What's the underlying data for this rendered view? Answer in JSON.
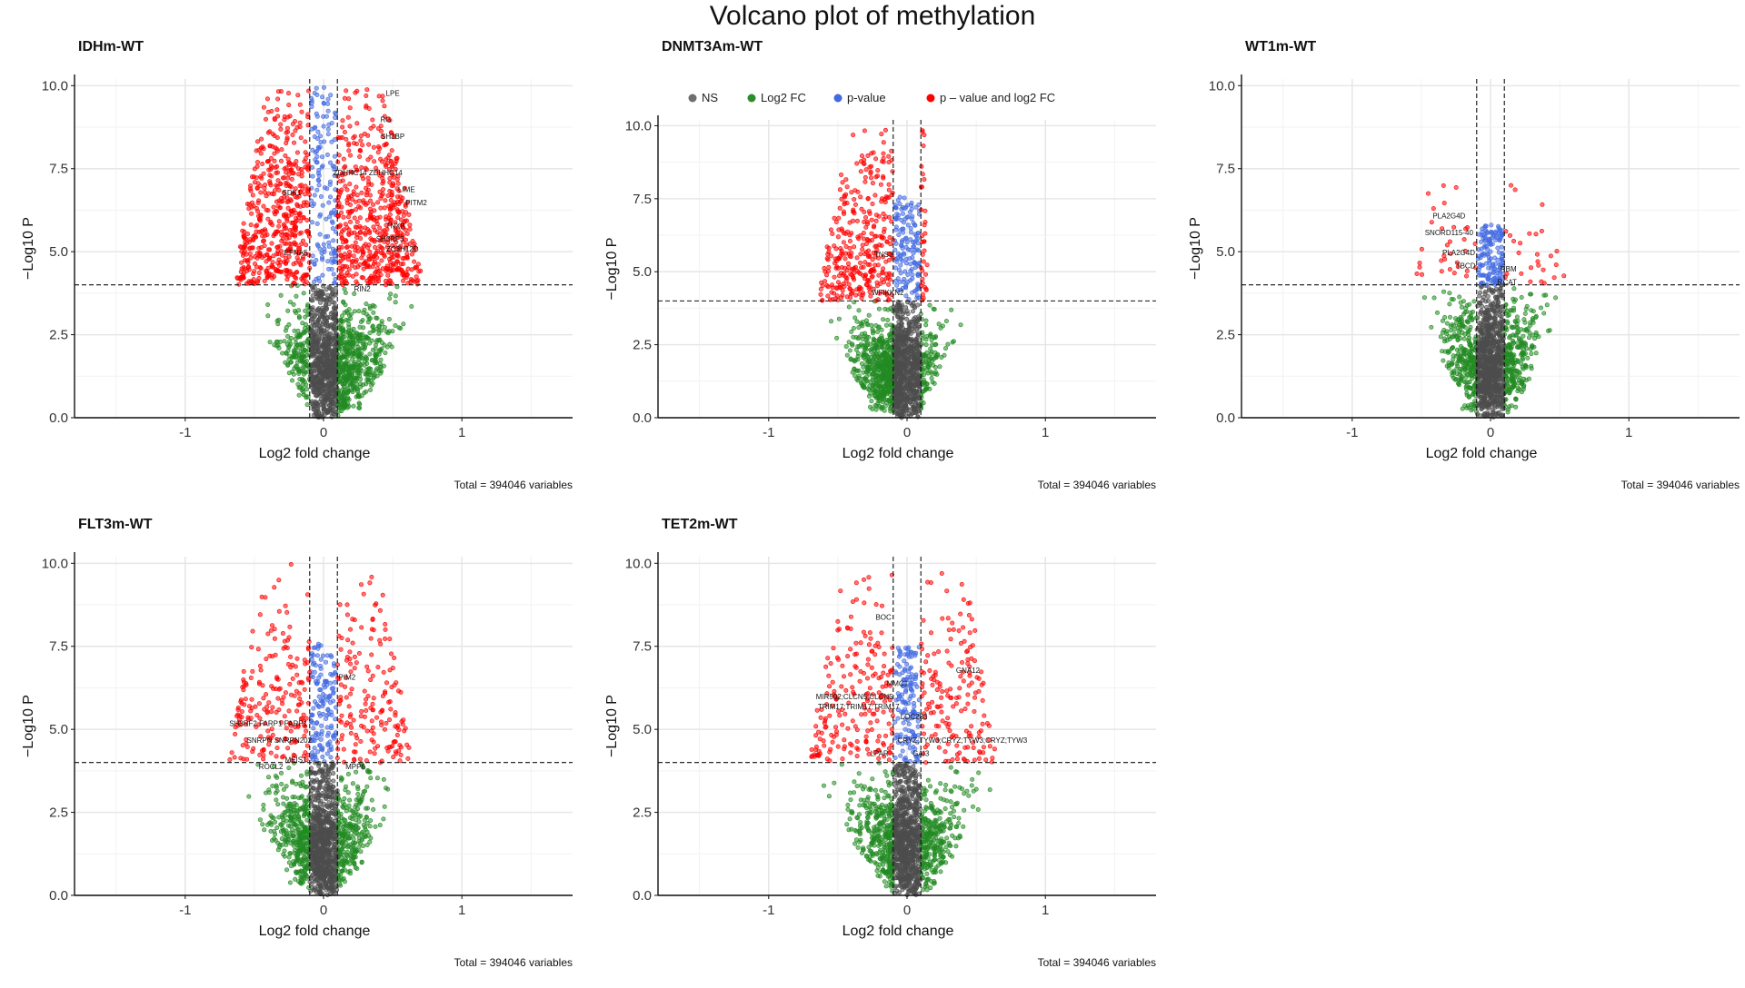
{
  "title": "Volcano plot of methylation",
  "legend": {
    "position": "top",
    "entries": [
      {
        "key": "NS",
        "color": "#6e6e6e"
      },
      {
        "key": "Log2 FC",
        "color": "#2e8b2e"
      },
      {
        "key": "p-value",
        "color": "#4169e1"
      },
      {
        "key": "p – value and log2 FC",
        "color": "#ff0000"
      }
    ]
  },
  "colors": {
    "ns": "#4d4d4d",
    "fc": "#228b22",
    "p": "#4169e1",
    "both": "#ff0000"
  },
  "chart_data": [
    {
      "type": "scatter",
      "name": "IDHm-WT",
      "xlabel": "Log2 fold change",
      "ylabel": "−Log10 P",
      "caption": "Total = 394046 variables",
      "xlim": [
        -1.8,
        1.8
      ],
      "ylim": [
        0,
        10.2
      ],
      "xticks": [
        -1,
        0,
        1
      ],
      "yticks": [
        0.0,
        2.5,
        5.0,
        7.5,
        10.0
      ],
      "fc_cutoff": 0.1,
      "p_cutoff": 4,
      "has_legend": false,
      "cloud": {
        "center": 0.08,
        "width_top": 0.62,
        "ymax_red": 10,
        "left_red": 0.55,
        "right_red": 0.62
      },
      "labels": [
        {
          "text": "LPE",
          "x": 0.5,
          "y": 9.7
        },
        {
          "text": "RG",
          "x": 0.45,
          "y": 8.9
        },
        {
          "text": "SH3BP",
          "x": 0.5,
          "y": 8.4
        },
        {
          "text": "ZDHHC14 ZDHHC14",
          "x": 0.32,
          "y": 7.3
        },
        {
          "text": "SDK1",
          "x": -0.23,
          "y": 6.7
        },
        {
          "text": "LIME",
          "x": 0.6,
          "y": 6.8
        },
        {
          "text": "PITM2",
          "x": 0.67,
          "y": 6.4
        },
        {
          "text": "TNXB",
          "x": 0.52,
          "y": 5.7
        },
        {
          "text": "SH3RF3",
          "x": 0.48,
          "y": 5.3
        },
        {
          "text": "ZC3H12D",
          "x": 0.57,
          "y": 5.0
        },
        {
          "text": "EFNA5",
          "x": -0.2,
          "y": 4.9
        },
        {
          "text": "RIN2",
          "x": 0.28,
          "y": 3.8
        }
      ]
    },
    {
      "type": "scatter",
      "name": "DNMT3Am-WT",
      "xlabel": "Log2 fold change",
      "ylabel": "−Log10 P",
      "caption": "Total = 394046 variables",
      "xlim": [
        -1.8,
        1.8
      ],
      "ylim": [
        0,
        10.2
      ],
      "xticks": [
        -1,
        0,
        1
      ],
      "yticks": [
        0.0,
        2.5,
        5.0,
        7.5,
        10.0
      ],
      "fc_cutoff": 0.1,
      "p_cutoff": 4,
      "has_legend": true,
      "cloud": {
        "center": -0.08,
        "width_top": 0.45,
        "ymax_red": 10,
        "left_red": 0.55,
        "right_red": 0.05
      },
      "labels": [
        {
          "text": "TNS3",
          "x": -0.17,
          "y": 5.5
        },
        {
          "text": "WFIKKN2",
          "x": -0.14,
          "y": 4.2
        }
      ]
    },
    {
      "type": "scatter",
      "name": "WT1m-WT",
      "xlabel": "Log2 fold change",
      "ylabel": "−Log10 P",
      "caption": "Total = 394046 variables",
      "xlim": [
        -1.8,
        1.8
      ],
      "ylim": [
        0,
        10.2
      ],
      "xticks": [
        -1,
        0,
        1
      ],
      "yticks": [
        0.0,
        2.5,
        5.0,
        7.5,
        10.0
      ],
      "fc_cutoff": 0.1,
      "p_cutoff": 4,
      "has_legend": false,
      "cloud": {
        "center": 0.0,
        "width_top": 0.45,
        "ymax_red": 7,
        "left_red": 0.45,
        "right_red": 0.45
      },
      "labels": [
        {
          "text": "PLA2G4D",
          "x": -0.3,
          "y": 6.0
        },
        {
          "text": "SNORD115-40",
          "x": -0.3,
          "y": 5.5
        },
        {
          "text": "PLA2G4D",
          "x": -0.23,
          "y": 4.9
        },
        {
          "text": "TBCD",
          "x": -0.18,
          "y": 4.5
        },
        {
          "text": "RBM",
          "x": 0.13,
          "y": 4.4
        },
        {
          "text": "RCAT",
          "x": 0.12,
          "y": 4.0
        }
      ]
    },
    {
      "type": "scatter",
      "name": "FLT3m-WT",
      "xlabel": "Log2 fold change",
      "ylabel": "−Log10 P",
      "caption": "Total = 394046 variables",
      "xlim": [
        -1.8,
        1.8
      ],
      "ylim": [
        0,
        10.2
      ],
      "xticks": [
        -1,
        0,
        1
      ],
      "yticks": [
        0.0,
        2.5,
        5.0,
        7.5,
        10.0
      ],
      "fc_cutoff": 0.1,
      "p_cutoff": 4,
      "has_legend": false,
      "cloud": {
        "center": -0.02,
        "width_top": 0.62,
        "ymax_red": 10,
        "left_red": 0.6,
        "right_red": 0.55
      },
      "labels": [
        {
          "text": "PIM2",
          "x": 0.17,
          "y": 6.5
        },
        {
          "text": "SH3RF2 FARP1 FARP1",
          "x": -0.4,
          "y": 5.1
        },
        {
          "text": "SNRPN SNRPN202",
          "x": -0.32,
          "y": 4.6
        },
        {
          "text": "MEIS1",
          "x": -0.2,
          "y": 4.0
        },
        {
          "text": "ROCL2",
          "x": -0.38,
          "y": 3.8
        },
        {
          "text": "MPP6",
          "x": 0.23,
          "y": 3.8
        }
      ]
    },
    {
      "type": "scatter",
      "name": "TET2m-WT",
      "xlabel": "Log2 fold change",
      "ylabel": "−Log10 P",
      "caption": "Total = 394046 variables",
      "xlim": [
        -1.8,
        1.8
      ],
      "ylim": [
        0,
        10.2
      ],
      "xticks": [
        -1,
        0,
        1
      ],
      "yticks": [
        0.0,
        2.5,
        5.0,
        7.5,
        10.0
      ],
      "fc_cutoff": 0.1,
      "p_cutoff": 4,
      "has_legend": false,
      "cloud": {
        "center": 0.0,
        "width_top": 0.65,
        "ymax_red": 9.8,
        "left_red": 0.62,
        "right_red": 0.55
      },
      "labels": [
        {
          "text": "BOC",
          "x": -0.17,
          "y": 8.3
        },
        {
          "text": "GNA12",
          "x": 0.44,
          "y": 6.7
        },
        {
          "text": "MMC1",
          "x": -0.07,
          "y": 6.3
        },
        {
          "text": "MIR502;CLCN5;CLCN5",
          "x": -0.38,
          "y": 5.9
        },
        {
          "text": "TRIM17;TRIM17;TRIM17",
          "x": -0.35,
          "y": 5.6
        },
        {
          "text": "LOC283",
          "x": 0.05,
          "y": 5.3
        },
        {
          "text": "CRYZ;TYW3;CRYZ;TYW3;CRYZ;TYW3",
          "x": 0.4,
          "y": 4.6
        },
        {
          "text": "LPAR",
          "x": -0.2,
          "y": 4.2
        },
        {
          "text": "GAI3",
          "x": 0.1,
          "y": 4.2
        }
      ]
    }
  ]
}
